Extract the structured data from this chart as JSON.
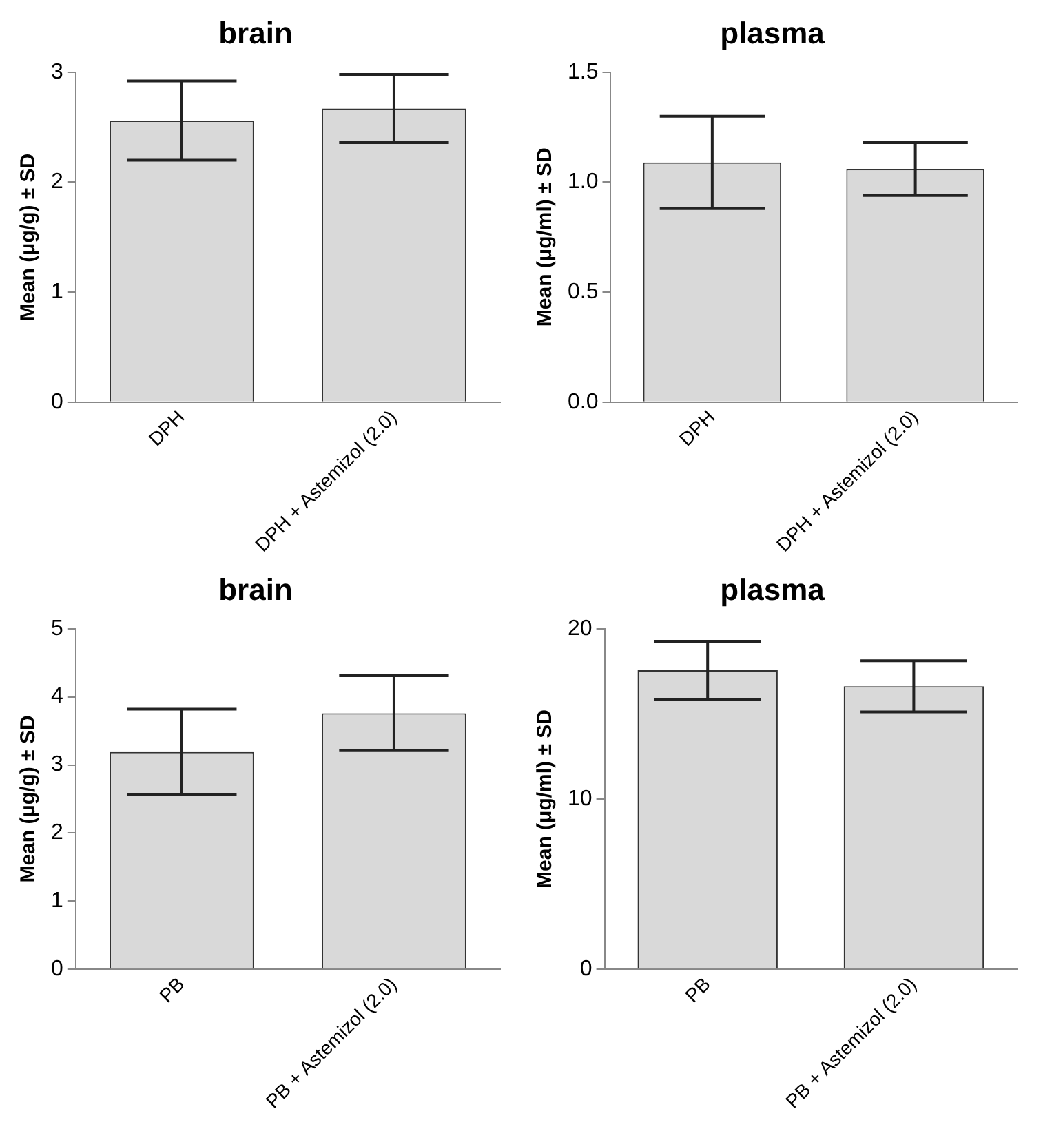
{
  "chart_data": [
    {
      "type": "bar",
      "title": "brain",
      "ylabel": "Mean (μg/g) ± SD",
      "categories": [
        "DPH",
        "DPH + Astemizol (2.0)"
      ],
      "values": [
        2.56,
        2.67
      ],
      "errors": [
        0.36,
        0.31
      ],
      "color": "#d9d9d9",
      "ylim": [
        0,
        3
      ],
      "yticks": [
        0,
        1,
        2,
        3
      ],
      "grid": false,
      "legend": false
    },
    {
      "type": "bar",
      "title": "plasma",
      "ylabel": "Mean (μg/ml) ± SD",
      "categories": [
        "DPH",
        "DPH + Astemizol (2.0)"
      ],
      "values": [
        1.09,
        1.06
      ],
      "errors": [
        0.21,
        0.12
      ],
      "color": "#d9d9d9",
      "ylim": [
        0,
        1.5
      ],
      "yticks": [
        {
          "value": 0,
          "label": "0.0"
        },
        {
          "value": 0.5,
          "label": "0.5"
        },
        {
          "value": 1,
          "label": "1.0"
        },
        {
          "value": 1.5,
          "label": "1.5"
        }
      ],
      "grid": false,
      "legend": false
    },
    {
      "type": "bar",
      "title": "brain",
      "ylabel": "Mean (μg/g) ± SD",
      "categories": [
        "PB",
        "PB + Astemizol (2.0)"
      ],
      "values": [
        3.19,
        3.76
      ],
      "errors": [
        0.63,
        0.55
      ],
      "color": "#d9d9d9",
      "ylim": [
        0,
        5
      ],
      "yticks": [
        0,
        1,
        2,
        3,
        4,
        5
      ],
      "grid": false,
      "legend": false
    },
    {
      "type": "bar",
      "title": "plasma",
      "ylabel": "Mean (μg/ml) ± SD",
      "categories": [
        "PB",
        "PB + Astemizol (2.0)"
      ],
      "values": [
        17.56,
        16.62
      ],
      "errors": [
        1.7,
        1.5
      ],
      "color": "#d9d9d9",
      "ylim": [
        0,
        20
      ],
      "yticks": [
        0,
        10,
        20
      ],
      "grid": false,
      "legend": false
    }
  ]
}
